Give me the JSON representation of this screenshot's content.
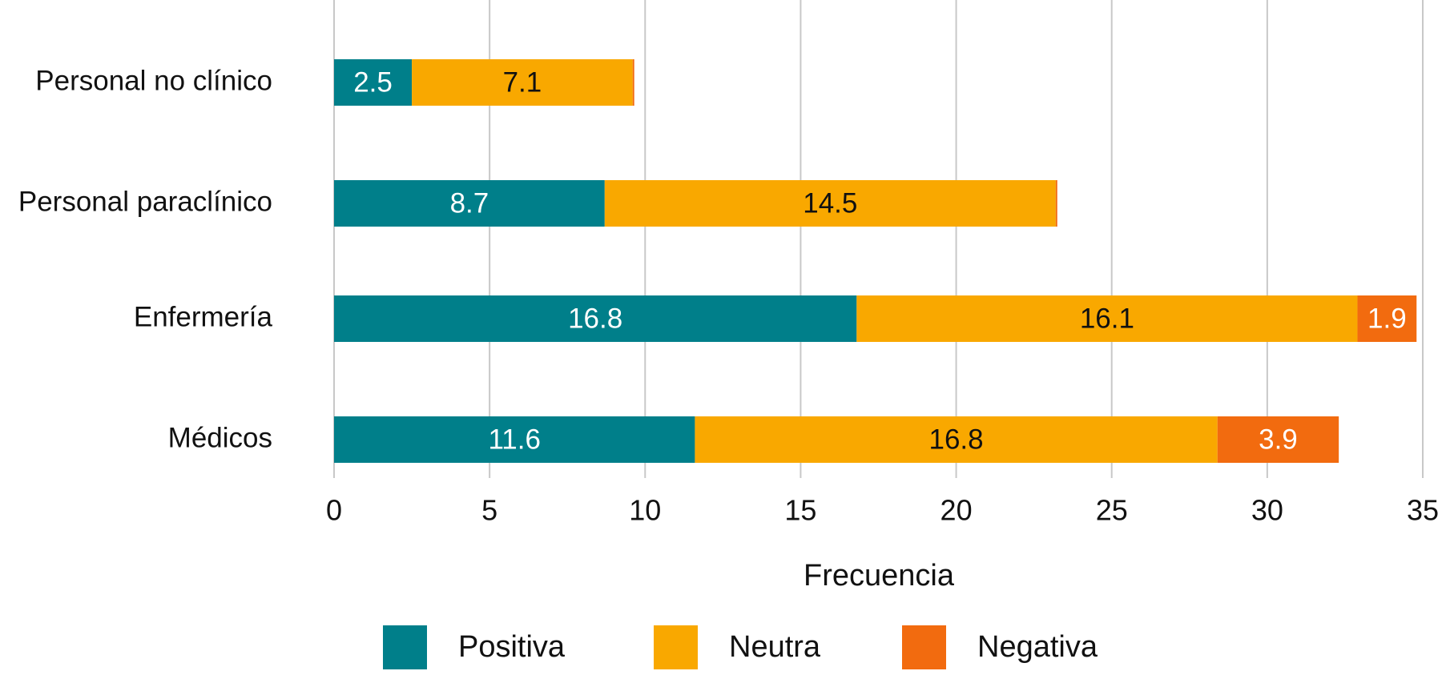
{
  "chart_data": {
    "type": "stacked-barh",
    "categories": [
      "Personal no clínico",
      "Personal paraclínico",
      "Enfermería",
      "Médicos"
    ],
    "series": [
      {
        "name": "Positiva",
        "color": "#007f8a",
        "values": [
          2.5,
          8.7,
          16.8,
          11.6
        ]
      },
      {
        "name": "Neutra",
        "color": "#f9a800",
        "values": [
          7.1,
          14.5,
          16.1,
          16.8
        ]
      },
      {
        "name": "Negativa",
        "color": "#f26b0f",
        "values": [
          0.05,
          0.05,
          1.9,
          3.9
        ]
      }
    ],
    "x_label": "Frecuencia",
    "xlim": [
      0,
      35
    ],
    "xticks": [
      0,
      5,
      10,
      15,
      20,
      25,
      30,
      35
    ],
    "grid": true
  }
}
